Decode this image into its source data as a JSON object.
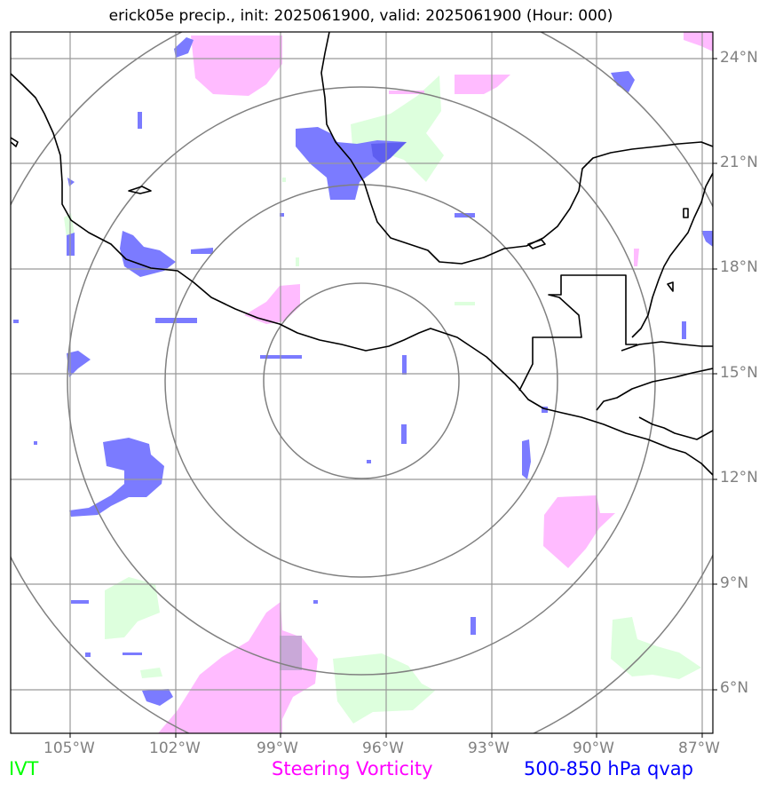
{
  "title": "erick05e precip., init: 2025061900, valid: 2025061900 (Hour: 000)",
  "map": {
    "lon_range": [
      -106.7,
      -86.7
    ],
    "lat_range": [
      4.9,
      24.8
    ],
    "lat_ticks": [
      {
        "value": 24,
        "label": "24°N"
      },
      {
        "value": 21,
        "label": "21°N"
      },
      {
        "value": 18,
        "label": "18°N"
      },
      {
        "value": 15,
        "label": "15°N"
      },
      {
        "value": 12,
        "label": "12°N"
      },
      {
        "value": 9,
        "label": "9°N"
      },
      {
        "value": 6,
        "label": "6°N"
      }
    ],
    "lon_ticks": [
      {
        "value": -105,
        "label": "105°W"
      },
      {
        "value": -102,
        "label": "102°W"
      },
      {
        "value": -99,
        "label": "99°W"
      },
      {
        "value": -96,
        "label": "96°W"
      },
      {
        "value": -93,
        "label": "93°W"
      },
      {
        "value": -90,
        "label": "90°W"
      },
      {
        "value": -87,
        "label": "87°W"
      }
    ],
    "range_rings": {
      "center_lon": -96.7,
      "center_lat": 14.8,
      "radii_deg": [
        2.8,
        5.6,
        8.4,
        11.2
      ]
    }
  },
  "legend": {
    "ivt": {
      "label": "IVT",
      "color": "#00ff00"
    },
    "vorticity": {
      "label": "Steering Vorticity",
      "color": "#ff00ff"
    },
    "qvap": {
      "label": "500-850 hPa qvap",
      "color": "#0000ff"
    }
  },
  "colors": {
    "ivt_fill": "#ddffdd",
    "vorticity_fill": "#ffbbff",
    "qvap_fill": "#7b7bff",
    "grid": "#999999",
    "rings": "#808080",
    "coast": "#000000"
  }
}
